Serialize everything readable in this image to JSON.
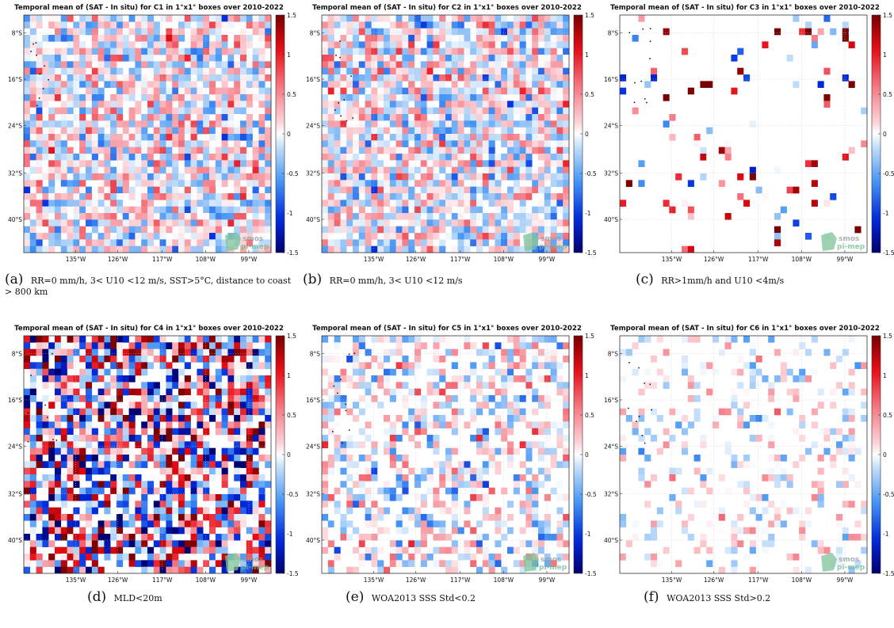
{
  "figure": {
    "panels": [
      {
        "id": "a",
        "title": "Temporal mean of (SAT - In situ) for C1 in 1°x1° boxes over 2010-2022",
        "caption_label": "(a)",
        "caption_text": "RR=0 mm/h, 3< U10 <12 m/s, SST>5°C, distance to coast > 800 km",
        "logo_text": [
          "smos",
          "pi-mep"
        ]
      },
      {
        "id": "b",
        "title": "Temporal mean of (SAT - In situ) for C2 in 1°x1° boxes over 2010-2022",
        "caption_label": "(b)",
        "caption_text": "RR=0 mm/h, 3< U10 <12 m/s",
        "logo_text": [
          "smos",
          "pi-mep"
        ]
      },
      {
        "id": "c",
        "title": "Temporal mean of (SAT - In situ) for C3 in 1°x1° boxes over 2010-2022",
        "caption_label": "(c)",
        "caption_text": "RR>1mm/h and U10 <4m/s",
        "logo_text": [
          "smos",
          "pi-mep"
        ]
      },
      {
        "id": "d",
        "title": "Temporal mean of (SAT - In situ) for C4 in 1°x1° boxes over 2010-2022",
        "caption_label": "(d)",
        "caption_text": "MLD<20m",
        "logo_text": [
          "smos",
          "pi-mep"
        ]
      },
      {
        "id": "e",
        "title": "Temporal mean of (SAT - In situ) for C5 in 1°x1° boxes over 2010-2022",
        "caption_label": "(e)",
        "caption_text": "WOA2013 SSS Std<0.2",
        "logo_text": [
          "smos",
          "pi-mep"
        ]
      },
      {
        "id": "f",
        "title": "Temporal mean of (SAT - In situ) for C6 in 1°x1° boxes over 2010-2022",
        "caption_label": "(f)",
        "caption_text": "WOA2013 SSS Std>0.2",
        "logo_text": [
          "smos",
          "pi-mep"
        ]
      }
    ]
  },
  "chart_data": [
    {
      "type": "heatmap",
      "panel": "a",
      "title": "Temporal mean of (SAT - In situ) for C1 in 1°x1° boxes over 2010-2022",
      "x_ticks": [
        "135°W",
        "126°W",
        "117°W",
        "108°W",
        "99°W"
      ],
      "y_ticks": [
        "8°S",
        "16°S",
        "24°S",
        "32°S",
        "40°S"
      ],
      "colorbar_ticks": [
        "1.5",
        "1",
        "0.5",
        "0",
        "-0.5",
        "-1",
        "-1.5"
      ],
      "clim": [
        -1.5,
        1.5
      ],
      "coverage": 0.88,
      "intensity": 0.35,
      "seed": 11
    },
    {
      "type": "heatmap",
      "panel": "b",
      "title": "Temporal mean of (SAT - In situ) for C2 in 1°x1° boxes over 2010-2022",
      "x_ticks": [
        "135°W",
        "126°W",
        "117°W",
        "108°W",
        "99°W"
      ],
      "y_ticks": [
        "8°S",
        "16°S",
        "24°S",
        "32°S",
        "40°S"
      ],
      "colorbar_ticks": [
        "1.5",
        "1",
        "0.5",
        "0",
        "-0.5",
        "-1",
        "-1.5"
      ],
      "clim": [
        -1.5,
        1.5
      ],
      "coverage": 0.9,
      "intensity": 0.35,
      "seed": 23
    },
    {
      "type": "heatmap",
      "panel": "c",
      "title": "Temporal mean of (SAT - In situ) for C3 in 1°x1° boxes over 2010-2022",
      "x_ticks": [
        "135°W",
        "126°W",
        "117°W",
        "108°W",
        "99°W"
      ],
      "y_ticks": [
        "8°S",
        "16°S",
        "24°S",
        "32°S",
        "40°S"
      ],
      "colorbar_ticks": [
        "1.5",
        "1",
        "0.5",
        "0",
        "-0.5",
        "-1",
        "-1.5"
      ],
      "clim": [
        -1.5,
        1.5
      ],
      "coverage": 0.07,
      "intensity": 0.9,
      "seed": 37
    },
    {
      "type": "heatmap",
      "panel": "d",
      "title": "Temporal mean of (SAT - In situ) for C4 in 1°x1° boxes over 2010-2022",
      "x_ticks": [
        "135°W",
        "126°W",
        "117°W",
        "108°W",
        "99°W"
      ],
      "y_ticks": [
        "8°S",
        "16°S",
        "24°S",
        "32°S",
        "40°S"
      ],
      "colorbar_ticks": [
        "1.5",
        "1",
        "0.5",
        "0",
        "-0.5",
        "-1",
        "-1.5"
      ],
      "clim": [
        -1.5,
        1.5
      ],
      "coverage": 0.75,
      "intensity": 0.8,
      "seed": 41
    },
    {
      "type": "heatmap",
      "panel": "e",
      "title": "Temporal mean of (SAT - In situ) for C5 in 1°x1° boxes over 2010-2022",
      "x_ticks": [
        "135°W",
        "126°W",
        "117°W",
        "108°W",
        "99°W"
      ],
      "y_ticks": [
        "8°S",
        "16°S",
        "24°S",
        "32°S",
        "40°S"
      ],
      "colorbar_ticks": [
        "1.5",
        "1",
        "0.5",
        "0",
        "-0.5",
        "-1",
        "-1.5"
      ],
      "clim": [
        -1.5,
        1.5
      ],
      "coverage": 0.5,
      "intensity": 0.35,
      "seed": 53
    },
    {
      "type": "heatmap",
      "panel": "f",
      "title": "Temporal mean of (SAT - In situ) for C6 in 1°x1° boxes over 2010-2022",
      "x_ticks": [
        "135°W",
        "126°W",
        "117°W",
        "108°W",
        "99°W"
      ],
      "y_ticks": [
        "8°S",
        "16°S",
        "24°S",
        "32°S",
        "40°S"
      ],
      "colorbar_ticks": [
        "1.5",
        "1",
        "0.5",
        "0",
        "-0.5",
        "-1",
        "-1.5"
      ],
      "clim": [
        -1.5,
        1.5
      ],
      "coverage": 0.22,
      "intensity": 0.25,
      "seed": 67
    }
  ]
}
